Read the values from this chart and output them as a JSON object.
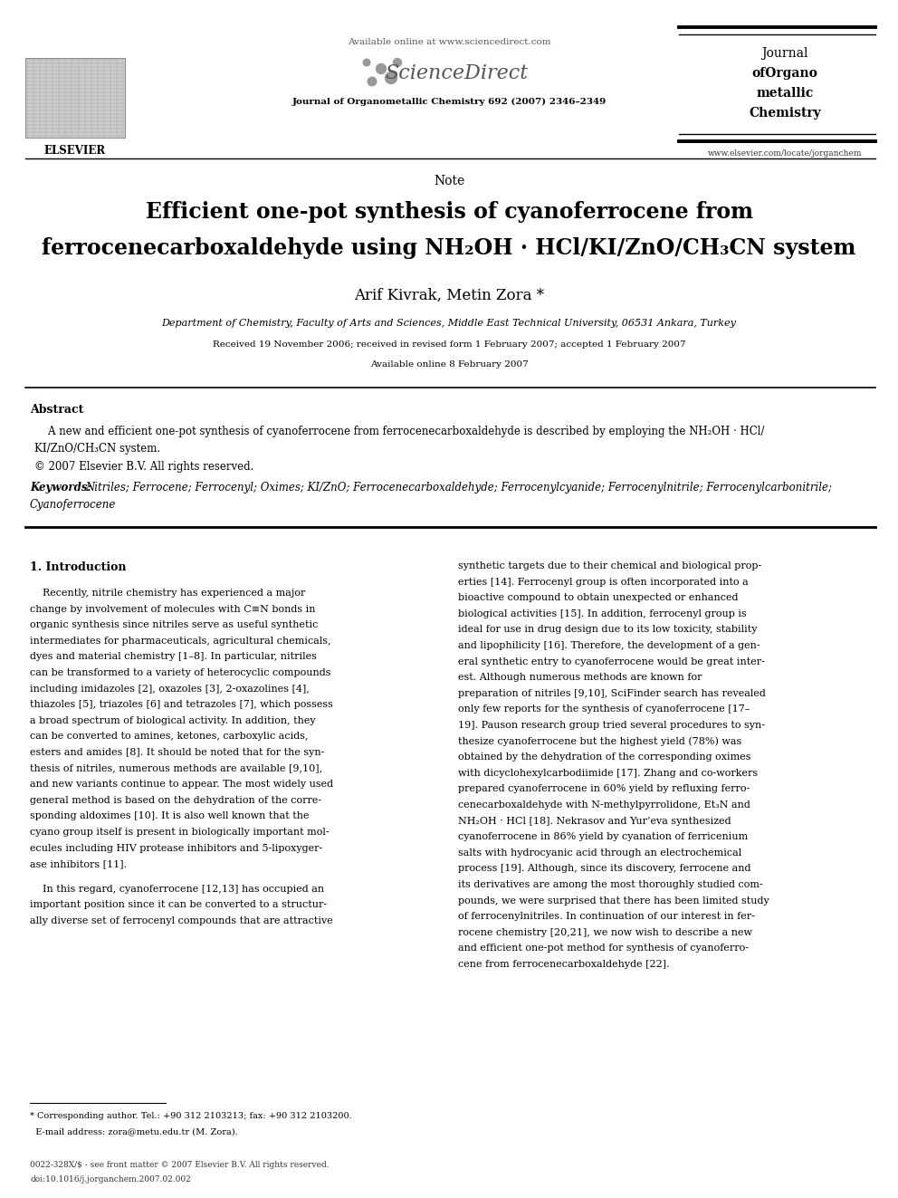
{
  "bg_color": "#ffffff",
  "text_color": "#000000",
  "page_width": 9.92,
  "page_height": 13.23,
  "header": {
    "available_online": "Available online at www.sciencedirect.com",
    "sciencedirect": "ScienceDirect",
    "journal_line": "Journal of Organometallic Chemistry 692 (2007) 2346–2349",
    "journal_name_lines": [
      "Journal",
      "ofOrgano",
      "metallic",
      "Chemistry"
    ],
    "website": "www.elsevier.com/locate/jorganchem",
    "elsevier": "ELSEVIER"
  },
  "article_type": "Note",
  "title_line1": "Efficient one-pot synthesis of cyanoferrocene from",
  "title_line2": "ferrocenecarboxaldehyde using NH₂OH · HCl/KI/ZnO/CH₃CN system",
  "authors": "Arif Kivrak, Metin Zora *",
  "affiliation": "Department of Chemistry, Faculty of Arts and Sciences, Middle East Technical University, 06531 Ankara, Turkey",
  "received": "Received 19 November 2006; received in revised form 1 February 2007; accepted 1 February 2007",
  "available": "Available online 8 February 2007",
  "abstract_heading": "Abstract",
  "abstract_text1": "    A new and efficient one-pot synthesis of cyanoferrocene from ferrocenecarboxaldehyde is described by employing the NH₂OH · HCl/",
  "abstract_text2": "KI/ZnO/CH₃CN system.",
  "abstract_text3": "© 2007 Elsevier B.V. All rights reserved.",
  "keywords_label": "Keywords: ",
  "keywords_text": "Nitriles; Ferrocene; Ferrocenyl; Oximes; KI/ZnO; Ferrocenecarboxaldehyde; Ferrocenylcyanide; Ferrocenylnitrile; Ferrocenylcarbonitrile;",
  "keywords_text2": "Cyanoferrocene",
  "section1_heading": "1. Introduction",
  "col1_para1_lines": [
    "    Recently, nitrile chemistry has experienced a major",
    "change by involvement of molecules with C≡N bonds in",
    "organic synthesis since nitriles serve as useful synthetic",
    "intermediates for pharmaceuticals, agricultural chemicals,",
    "dyes and material chemistry [1–8]. In particular, nitriles",
    "can be transformed to a variety of heterocyclic compounds",
    "including imidazoles [2], oxazoles [3], 2-oxazolines [4],",
    "thiazoles [5], triazoles [6] and tetrazoles [7], which possess",
    "a broad spectrum of biological activity. In addition, they",
    "can be converted to amines, ketones, carboxylic acids,",
    "esters and amides [8]. It should be noted that for the syn-",
    "thesis of nitriles, numerous methods are available [9,10],",
    "and new variants continue to appear. The most widely used",
    "general method is based on the dehydration of the corre-",
    "sponding aldoximes [10]. It is also well known that the",
    "cyano group itself is present in biologically important mol-",
    "ecules including HIV protease inhibitors and 5-lipoxyger-",
    "ase inhibitors [11]."
  ],
  "col1_para2_lines": [
    "    In this regard, cyanoferrocene [12,13] has occupied an",
    "important position since it can be converted to a structur-",
    "ally diverse set of ferrocenyl compounds that are attractive"
  ],
  "col2_para1_lines": [
    "synthetic targets due to their chemical and biological prop-",
    "erties [14]. Ferrocenyl group is often incorporated into a",
    "bioactive compound to obtain unexpected or enhanced",
    "biological activities [15]. In addition, ferrocenyl group is",
    "ideal for use in drug design due to its low toxicity, stability",
    "and lipophilicity [16]. Therefore, the development of a gen-",
    "eral synthetic entry to cyanoferrocene would be great inter-",
    "est. Although numerous methods are known for",
    "preparation of nitriles [9,10], SciFinder search has revealed",
    "only few reports for the synthesis of cyanoferrocene [17–",
    "19]. Pauson research group tried several procedures to syn-",
    "thesize cyanoferrocene but the highest yield (78%) was",
    "obtained by the dehydration of the corresponding oximes",
    "with dicyclohexylcarbodiimide [17]. Zhang and co-workers",
    "prepared cyanoferrocene in 60% yield by refluxing ferro-",
    "cenecarboxaldehyde with N-methylpyrrolidone, Et₃N and",
    "NH₂OH · HCl [18]. Nekrasov and Yur’eva synthesized",
    "cyanoferrocene in 86% yield by cyanation of ferricenium",
    "salts with hydrocyanic acid through an electrochemical",
    "process [19]. Although, since its discovery, ferrocene and",
    "its derivatives are among the most thoroughly studied com-",
    "pounds, we were surprised that there has been limited study",
    "of ferrocenylnitriles. In continuation of our interest in fer-",
    "rocene chemistry [20,21], we now wish to describe a new",
    "and efficient one-pot method for synthesis of cyanoferro-",
    "cene from ferrocenecarboxaldehyde [22]."
  ],
  "footnote_line1": "* Corresponding author. Tel.: +90 312 2103213; fax: +90 312 2103200.",
  "footnote_line2": "  E-mail address: zora@metu.edu.tr (M. Zora).",
  "footer_line1": "0022-328X/$ - see front matter © 2007 Elsevier B.V. All rights reserved.",
  "footer_line2": "doi:10.1016/j.jorganchem.2007.02.002"
}
